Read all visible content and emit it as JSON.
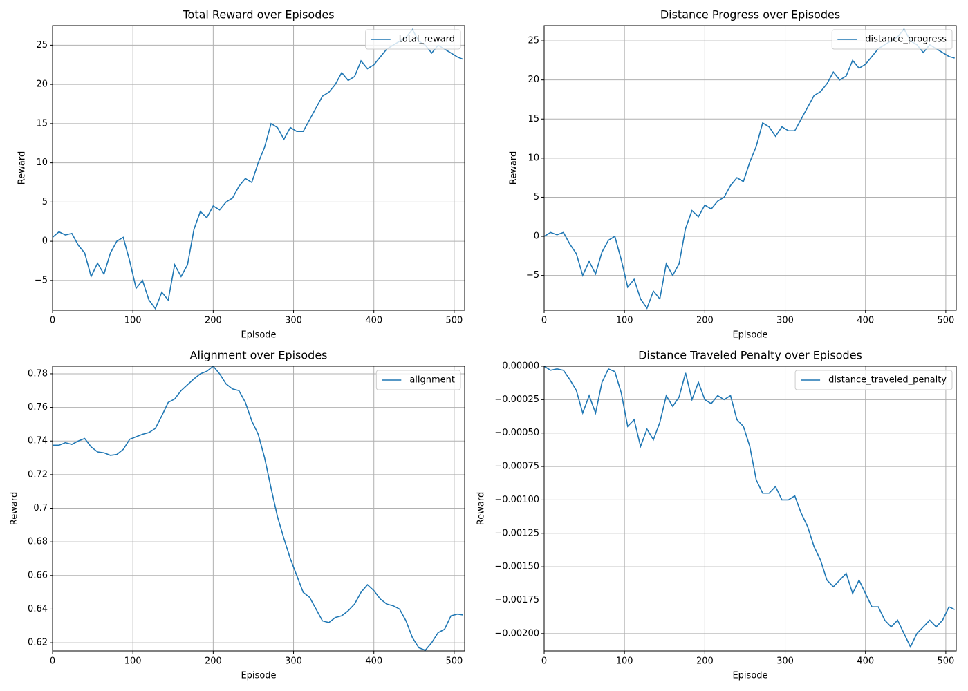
{
  "chart_data": [
    {
      "type": "line",
      "title": "Total Reward over Episodes",
      "x_label": "Episode",
      "y_label": "Reward",
      "x": [
        0,
        8,
        16,
        24,
        32,
        40,
        48,
        56,
        64,
        72,
        80,
        88,
        96,
        104,
        112,
        120,
        128,
        136,
        144,
        152,
        160,
        168,
        176,
        184,
        192,
        200,
        208,
        216,
        224,
        232,
        240,
        248,
        256,
        264,
        272,
        280,
        288,
        296,
        304,
        312,
        320,
        328,
        336,
        344,
        352,
        360,
        368,
        376,
        384,
        392,
        400,
        408,
        416,
        424,
        432,
        440,
        448,
        456,
        464,
        472,
        480,
        488,
        496,
        504,
        511
      ],
      "series": [
        {
          "name": "total_reward",
          "color": "#1f77b4",
          "values": [
            0.5,
            1.2,
            0.8,
            1.0,
            -0.5,
            -1.5,
            -4.5,
            -2.8,
            -4.2,
            -1.5,
            0.0,
            0.5,
            -2.5,
            -6.0,
            -5.0,
            -7.5,
            -8.6,
            -6.5,
            -7.5,
            -3.0,
            -4.5,
            -3.0,
            1.5,
            3.8,
            3.0,
            4.5,
            4.0,
            5.0,
            5.5,
            7.0,
            8.0,
            7.5,
            10.0,
            12.0,
            15.0,
            14.5,
            13.0,
            14.5,
            14.0,
            14.0,
            15.5,
            17.0,
            18.5,
            19.0,
            20.0,
            21.5,
            20.5,
            21.0,
            23.0,
            22.0,
            22.5,
            23.5,
            24.5,
            25.0,
            25.5,
            26.0,
            27.0,
            25.5,
            25.0,
            24.0,
            25.0,
            24.5,
            24.0,
            23.5,
            23.2
          ]
        }
      ],
      "xlim": [
        0,
        513
      ],
      "ylim": [
        -8.8,
        27.5
      ],
      "xticks": [
        0,
        100,
        200,
        300,
        400,
        500
      ],
      "yticks": [
        {
          "value": -5,
          "label": "−5"
        },
        0,
        5,
        10,
        15,
        20,
        25
      ],
      "grid": true,
      "legend": "upper right"
    },
    {
      "type": "line",
      "title": "Distance Progress over Episodes",
      "x_label": "Episode",
      "y_label": "Reward",
      "x": [
        0,
        8,
        16,
        24,
        32,
        40,
        48,
        56,
        64,
        72,
        80,
        88,
        96,
        104,
        112,
        120,
        128,
        136,
        144,
        152,
        160,
        168,
        176,
        184,
        192,
        200,
        208,
        216,
        224,
        232,
        240,
        248,
        256,
        264,
        272,
        280,
        288,
        296,
        304,
        312,
        320,
        328,
        336,
        344,
        352,
        360,
        368,
        376,
        384,
        392,
        400,
        408,
        416,
        424,
        432,
        440,
        448,
        456,
        464,
        472,
        480,
        488,
        496,
        504,
        511
      ],
      "series": [
        {
          "name": "distance_progress",
          "color": "#1f77b4",
          "values": [
            0.0,
            0.5,
            0.2,
            0.5,
            -1.0,
            -2.2,
            -5.0,
            -3.2,
            -4.8,
            -2.0,
            -0.5,
            0.0,
            -3.0,
            -6.5,
            -5.5,
            -8.0,
            -9.2,
            -7.0,
            -8.0,
            -3.5,
            -5.0,
            -3.5,
            1.0,
            3.3,
            2.5,
            4.0,
            3.5,
            4.5,
            5.0,
            6.5,
            7.5,
            7.0,
            9.5,
            11.5,
            14.5,
            14.0,
            12.8,
            14.0,
            13.5,
            13.5,
            15.0,
            16.5,
            18.0,
            18.5,
            19.5,
            21.0,
            20.0,
            20.5,
            22.5,
            21.5,
            22.0,
            23.0,
            24.0,
            24.5,
            25.0,
            25.5,
            26.5,
            25.0,
            24.5,
            23.5,
            24.5,
            24.0,
            23.5,
            23.0,
            22.8
          ]
        }
      ],
      "xlim": [
        0,
        513
      ],
      "ylim": [
        -9.45,
        26.95
      ],
      "xticks": [
        0,
        100,
        200,
        300,
        400,
        500
      ],
      "yticks": [
        {
          "value": -5,
          "label": "−5"
        },
        0,
        5,
        10,
        15,
        20,
        25
      ],
      "grid": true,
      "legend": "upper right"
    },
    {
      "type": "line",
      "title": "Alignment over Episodes",
      "x_label": "Episode",
      "y_label": "Reward",
      "x": [
        0,
        8,
        16,
        24,
        32,
        40,
        48,
        56,
        64,
        72,
        80,
        88,
        96,
        104,
        112,
        120,
        128,
        136,
        144,
        152,
        160,
        168,
        176,
        184,
        192,
        200,
        208,
        216,
        224,
        232,
        240,
        248,
        256,
        264,
        272,
        280,
        288,
        296,
        304,
        312,
        320,
        328,
        336,
        344,
        352,
        360,
        368,
        376,
        384,
        392,
        400,
        408,
        416,
        424,
        432,
        440,
        448,
        456,
        464,
        472,
        480,
        488,
        496,
        504,
        511
      ],
      "series": [
        {
          "name": "alignment",
          "color": "#1f77b4",
          "values": [
            0.7375,
            0.7375,
            0.739,
            0.738,
            0.74,
            0.7415,
            0.7365,
            0.7335,
            0.733,
            0.7315,
            0.732,
            0.735,
            0.741,
            0.7425,
            0.744,
            0.745,
            0.7475,
            0.755,
            0.763,
            0.765,
            0.77,
            0.7735,
            0.777,
            0.78,
            0.7815,
            0.7845,
            0.78,
            0.774,
            0.771,
            0.77,
            0.763,
            0.752,
            0.744,
            0.73,
            0.712,
            0.695,
            0.682,
            0.67,
            0.66,
            0.65,
            0.647,
            0.64,
            0.633,
            0.632,
            0.635,
            0.636,
            0.639,
            0.643,
            0.65,
            0.6545,
            0.651,
            0.646,
            0.643,
            0.642,
            0.64,
            0.633,
            0.623,
            0.617,
            0.6155,
            0.62,
            0.626,
            0.628,
            0.636,
            0.637,
            0.6365
          ]
        }
      ],
      "xlim": [
        0,
        513
      ],
      "ylim": [
        0.6151,
        0.7845
      ],
      "xticks": [
        0,
        100,
        200,
        300,
        400,
        500
      ],
      "yticks": [
        0.62,
        0.64,
        0.66,
        0.68,
        0.7,
        0.72,
        0.74,
        0.76,
        0.78
      ],
      "grid": true,
      "legend": "upper right"
    },
    {
      "type": "line",
      "title": "Distance Traveled Penalty over Episodes",
      "x_label": "Episode",
      "y_label": "Reward",
      "x": [
        0,
        8,
        16,
        24,
        32,
        40,
        48,
        56,
        64,
        72,
        80,
        88,
        96,
        104,
        112,
        120,
        128,
        136,
        144,
        152,
        160,
        168,
        176,
        184,
        192,
        200,
        208,
        216,
        224,
        232,
        240,
        248,
        256,
        264,
        272,
        280,
        288,
        296,
        304,
        312,
        320,
        328,
        336,
        344,
        352,
        360,
        368,
        376,
        384,
        392,
        400,
        408,
        416,
        424,
        432,
        440,
        448,
        456,
        464,
        472,
        480,
        488,
        496,
        504,
        511
      ],
      "series": [
        {
          "name": "distance_traveled_penalty",
          "color": "#1f77b4",
          "values": [
            0,
            -3e-05,
            -2e-05,
            -3e-05,
            -0.0001,
            -0.00018,
            -0.00035,
            -0.00022,
            -0.00035,
            -0.00012,
            -2e-05,
            -4e-05,
            -0.0002,
            -0.00045,
            -0.0004,
            -0.0006,
            -0.00047,
            -0.00055,
            -0.00042,
            -0.00022,
            -0.0003,
            -0.00023,
            -5e-05,
            -0.00025,
            -0.00012,
            -0.00025,
            -0.00028,
            -0.00022,
            -0.00025,
            -0.00022,
            -0.0004,
            -0.00045,
            -0.0006,
            -0.00085,
            -0.00095,
            -0.00095,
            -0.0009,
            -0.001,
            -0.001,
            -0.00097,
            -0.0011,
            -0.0012,
            -0.00135,
            -0.00145,
            -0.0016,
            -0.00165,
            -0.0016,
            -0.00155,
            -0.0017,
            -0.0016,
            -0.0017,
            -0.0018,
            -0.0018,
            -0.0019,
            -0.00195,
            -0.0019,
            -0.002,
            -0.0021,
            -0.002,
            -0.00195,
            -0.0019,
            -0.00195,
            -0.0019,
            -0.0018,
            -0.00182
          ]
        }
      ],
      "xlim": [
        0,
        513
      ],
      "ylim": [
        -0.00213,
        0
      ],
      "xticks": [
        0,
        100,
        200,
        300,
        400,
        500
      ],
      "yticks": [
        {
          "value": 0,
          "label": "0.00000"
        },
        {
          "value": -0.00025,
          "label": "−0.00025"
        },
        {
          "value": -0.0005,
          "label": "−0.00050"
        },
        {
          "value": -0.00075,
          "label": "−0.00075"
        },
        {
          "value": -0.001,
          "label": "−0.00100"
        },
        {
          "value": -0.00125,
          "label": "−0.00125"
        },
        {
          "value": -0.0015,
          "label": "−0.00150"
        },
        {
          "value": -0.00175,
          "label": "−0.00175"
        },
        {
          "value": -0.002,
          "label": "−0.00200"
        }
      ],
      "grid": true,
      "legend": "upper right"
    }
  ]
}
